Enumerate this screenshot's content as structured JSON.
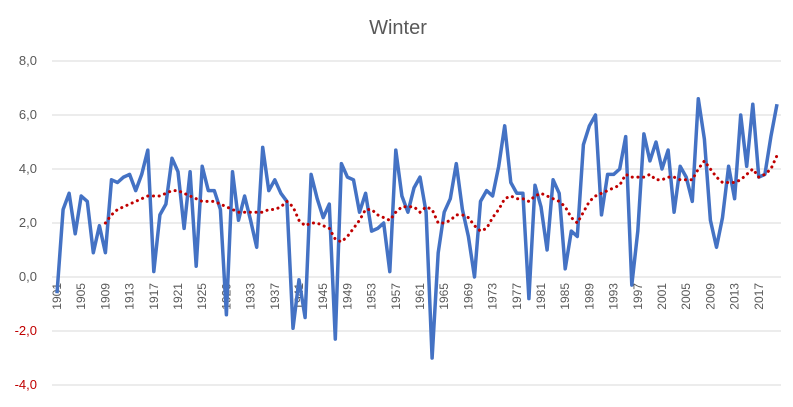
{
  "chart_data": {
    "type": "line",
    "title": "Winter",
    "xlabel": "",
    "ylabel": "",
    "x": [
      1901,
      1902,
      1903,
      1904,
      1905,
      1906,
      1907,
      1908,
      1909,
      1910,
      1911,
      1912,
      1913,
      1914,
      1915,
      1916,
      1917,
      1918,
      1919,
      1920,
      1921,
      1922,
      1923,
      1924,
      1925,
      1926,
      1927,
      1928,
      1929,
      1930,
      1931,
      1932,
      1933,
      1934,
      1935,
      1936,
      1937,
      1938,
      1939,
      1940,
      1941,
      1942,
      1943,
      1944,
      1945,
      1946,
      1947,
      1948,
      1949,
      1950,
      1951,
      1952,
      1953,
      1954,
      1955,
      1956,
      1957,
      1958,
      1959,
      1960,
      1961,
      1962,
      1963,
      1964,
      1965,
      1966,
      1967,
      1968,
      1969,
      1970,
      1971,
      1972,
      1973,
      1974,
      1975,
      1976,
      1977,
      1978,
      1979,
      1980,
      1981,
      1982,
      1983,
      1984,
      1985,
      1986,
      1987,
      1988,
      1989,
      1990,
      1991,
      1992,
      1993,
      1994,
      1995,
      1996,
      1997,
      1998,
      1999,
      2000,
      2001,
      2002,
      2003,
      2004,
      2005,
      2006,
      2007,
      2008,
      2009,
      2010,
      2011,
      2012,
      2013,
      2014,
      2015,
      2016,
      2017,
      2018,
      2019,
      2020
    ],
    "x_tick_labels": [
      "1901",
      "1905",
      "1909",
      "1913",
      "1917",
      "1921",
      "1925",
      "1929",
      "1933",
      "1937",
      "1941",
      "1945",
      "1949",
      "1953",
      "1957",
      "1961",
      "1965",
      "1969",
      "1973",
      "1977",
      "1981",
      "1985",
      "1989",
      "1993",
      "1997",
      "2001",
      "2005",
      "2009",
      "2013",
      "2017"
    ],
    "ylim": [
      -4.0,
      8.0
    ],
    "y_tick_labels": [
      "8,0",
      "6,0",
      "4,0",
      "2,0",
      "0,0",
      "-2,0",
      "-4,0"
    ],
    "y_tick_values": [
      8,
      6,
      4,
      2,
      0,
      -2,
      -4
    ],
    "grid": true,
    "legend": "none",
    "series": [
      {
        "style": "solid",
        "color": "#4472c4",
        "values": [
          -0.6,
          2.5,
          3.1,
          1.6,
          3.0,
          2.8,
          0.9,
          1.9,
          0.9,
          3.6,
          3.5,
          3.7,
          3.8,
          3.2,
          3.8,
          4.7,
          0.2,
          2.3,
          2.7,
          4.4,
          3.9,
          1.8,
          3.9,
          0.4,
          4.1,
          3.2,
          3.2,
          2.5,
          -1.4,
          3.9,
          2.1,
          3.0,
          2.1,
          1.1,
          4.8,
          3.2,
          3.6,
          3.1,
          2.8,
          -1.9,
          -0.1,
          -1.5,
          3.8,
          2.9,
          2.2,
          2.7,
          -2.3,
          4.2,
          3.7,
          3.6,
          2.4,
          3.1,
          1.7,
          1.8,
          2.0,
          0.2,
          4.7,
          3.0,
          2.4,
          3.3,
          3.7,
          2.4,
          -3.0,
          0.9,
          2.4,
          2.9,
          4.2,
          2.5,
          1.5,
          0.0,
          2.8,
          3.2,
          3.0,
          4.1,
          5.6,
          3.5,
          3.1,
          3.1,
          -0.8,
          3.4,
          2.6,
          1.0,
          3.6,
          3.1,
          0.3,
          1.7,
          1.5,
          4.9,
          5.6,
          6.0,
          2.3,
          3.8,
          3.8,
          4.0,
          5.2,
          -0.3,
          1.7,
          5.3,
          4.3,
          5.0,
          4.0,
          4.7,
          2.4,
          4.1,
          3.7,
          2.8,
          6.6,
          5.1,
          2.1,
          1.1,
          2.2,
          4.1,
          2.9,
          6.0,
          4.1,
          6.4,
          3.7,
          3.8,
          5.2,
          6.4
        ]
      },
      {
        "style": "dotted",
        "color": "#c00000",
        "values": [
          null,
          null,
          null,
          null,
          null,
          null,
          null,
          null,
          2.0,
          2.3,
          2.5,
          2.6,
          2.7,
          2.8,
          2.9,
          3.0,
          3.0,
          3.0,
          3.1,
          3.2,
          3.2,
          3.1,
          3.0,
          2.9,
          2.8,
          2.8,
          2.8,
          2.7,
          2.6,
          2.5,
          2.4,
          2.4,
          2.4,
          2.4,
          2.4,
          2.5,
          2.5,
          2.6,
          2.8,
          2.6,
          2.1,
          1.9,
          2.0,
          2.0,
          1.9,
          1.8,
          1.4,
          1.3,
          1.5,
          1.8,
          2.1,
          2.5,
          2.5,
          2.3,
          2.2,
          2.1,
          2.4,
          2.6,
          2.6,
          2.6,
          2.4,
          2.6,
          2.5,
          2.0,
          2.0,
          2.1,
          2.3,
          2.3,
          2.2,
          1.9,
          1.7,
          1.8,
          2.2,
          2.5,
          2.9,
          3.0,
          2.9,
          2.9,
          2.8,
          3.0,
          3.1,
          3.0,
          2.9,
          2.8,
          2.6,
          2.2,
          2.0,
          2.4,
          2.8,
          3.0,
          3.1,
          3.2,
          3.3,
          3.4,
          3.8,
          3.7,
          3.7,
          3.7,
          3.8,
          3.6,
          3.6,
          3.7,
          3.7,
          3.6,
          3.6,
          3.6,
          4.0,
          4.3,
          4.0,
          3.7,
          3.5,
          3.5,
          3.5,
          3.6,
          3.8,
          4.0,
          3.7,
          3.8,
          4.0,
          4.5
        ]
      }
    ]
  }
}
